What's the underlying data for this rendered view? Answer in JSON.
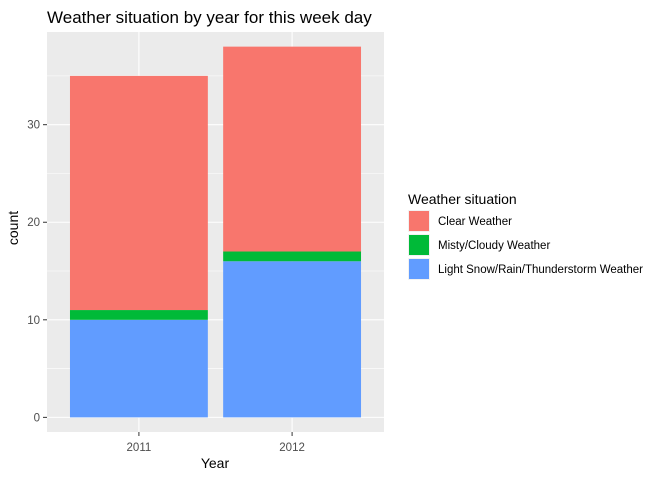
{
  "chart_data": {
    "type": "bar",
    "stacked": true,
    "title": "Weather situation by year for this week day",
    "xlabel": "Year",
    "ylabel": "count",
    "categories": [
      "2011",
      "2012"
    ],
    "yticks": [
      0,
      10,
      20,
      30
    ],
    "ylim": [
      -1.5,
      39.5
    ],
    "grid": true,
    "legend": {
      "title": "Weather situation",
      "placement": "right"
    },
    "series": [
      {
        "name": "Light Snow/Rain/Thunderstorm Weather",
        "values": [
          10,
          16
        ],
        "color": "#619CFF"
      },
      {
        "name": "Misty/Cloudy Weather",
        "values": [
          1,
          1
        ],
        "color": "#00BA38"
      },
      {
        "name": "Clear Weather",
        "values": [
          24,
          21
        ],
        "color": "#F8766D"
      }
    ],
    "legend_order": [
      "Clear Weather",
      "Misty/Cloudy Weather",
      "Light Snow/Rain/Thunderstorm Weather"
    ],
    "panel_background": "#EBEBEB",
    "gridline_color": "#FFFFFF"
  }
}
